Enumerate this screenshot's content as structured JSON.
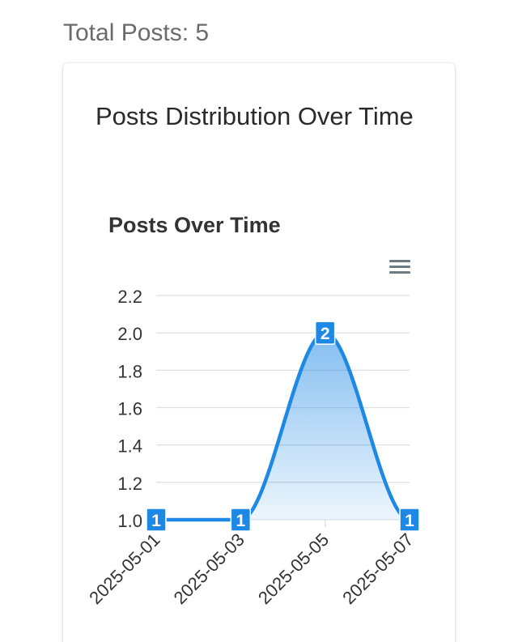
{
  "header": {
    "total_posts_label": "Total Posts: 5"
  },
  "card": {
    "title": "Posts Distribution Over Time"
  },
  "icons": {
    "menu": "hamburger-menu-icon"
  },
  "colors": {
    "series": "#1e88e5",
    "label_bg": "#1e88e5",
    "grid": "#e0e0e0",
    "axis_text": "#333333",
    "title_text": "#333333"
  },
  "chart_data": {
    "type": "area",
    "title": "Posts Over Time",
    "xlabel": "",
    "ylabel": "",
    "categories": [
      "2025-05-01",
      "2025-05-03",
      "2025-05-05",
      "2025-05-07"
    ],
    "x_tick_labels": [
      "2025-05-01",
      "2025-05-03",
      "2025-05-05",
      "2025-05-07"
    ],
    "series": [
      {
        "values": [
          1,
          1,
          2,
          1
        ]
      }
    ],
    "data_labels": [
      "1",
      "1",
      "2",
      "1"
    ],
    "ylim": [
      1.0,
      2.2
    ],
    "y_ticks": [
      1.0,
      1.2,
      1.4,
      1.6,
      1.8,
      2.0,
      2.2
    ],
    "y_tick_labels": [
      "1.0",
      "1.2",
      "1.4",
      "1.6",
      "1.8",
      "2.0",
      "2.2"
    ],
    "curve": "smooth",
    "grid": true,
    "legend": "none"
  }
}
